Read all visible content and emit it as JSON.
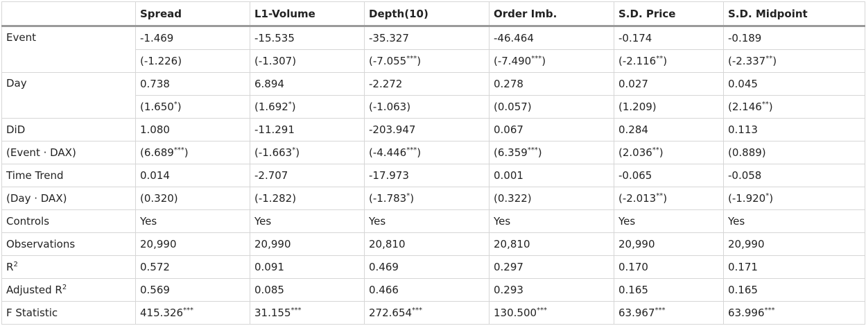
{
  "table": {
    "headers": [
      "",
      "Spread",
      "L1-Volume",
      "Depth(10)",
      "Order Imb.",
      "S.D. Price",
      "S.D. Midpoint"
    ],
    "rows": [
      {
        "label": "Event",
        "cells": [
          "-1.469",
          "-15.535",
          "-35.327",
          "-46.464",
          "-0.174",
          "-0.189"
        ]
      },
      {
        "label": "",
        "cells": [
          "(-1.226)",
          "(-1.307)",
          "(-7.055***)",
          "(-7.490***)",
          "(-2.116**)",
          "(-2.337**)"
        ]
      },
      {
        "label": "Day",
        "cells": [
          "0.738",
          "6.894",
          "-2.272",
          "0.278",
          "0.027",
          "0.045"
        ]
      },
      {
        "label": "",
        "cells": [
          "(1.650*)",
          "(1.692*)",
          "(-1.063)",
          "(0.057)",
          "(1.209)",
          "(2.146**)"
        ]
      },
      {
        "label": "DiD",
        "cells": [
          "1.080",
          "-11.291",
          "-203.947",
          "0.067",
          "0.284",
          "0.113"
        ]
      },
      {
        "label": "(Event · DAX)",
        "cells": [
          "(6.689***)",
          "(-1.663*)",
          "(-4.446***)",
          "(6.359***)",
          "(2.036**)",
          "(0.889)"
        ]
      },
      {
        "label": "Time Trend",
        "cells": [
          "0.014",
          "-2.707",
          "-17.973",
          "0.001",
          "-0.065",
          "-0.058"
        ]
      },
      {
        "label": "(Day · DAX)",
        "cells": [
          "(0.320)",
          "(-1.282)",
          "(-1.783*)",
          "(0.322)",
          "(-2.013**)",
          "(-1.920*)"
        ]
      },
      {
        "label": "Controls",
        "cells": [
          "Yes",
          "Yes",
          "Yes",
          "Yes",
          "Yes",
          "Yes"
        ]
      },
      {
        "label": "Observations",
        "cells": [
          "20,990",
          "20,990",
          "20,810",
          "20,810",
          "20,990",
          "20,990"
        ]
      },
      {
        "label": "R2",
        "cells": [
          "0.572",
          "0.091",
          "0.469",
          "0.297",
          "0.170",
          "0.171"
        ]
      },
      {
        "label": "Adjusted R2",
        "cells": [
          "0.569",
          "0.085",
          "0.466",
          "0.293",
          "0.165",
          "0.165"
        ]
      },
      {
        "label": "F Statistic",
        "cells": [
          "415.326***",
          "31.155***",
          "272.654***",
          "130.500***",
          "63.967***",
          "63.996***"
        ]
      }
    ]
  }
}
